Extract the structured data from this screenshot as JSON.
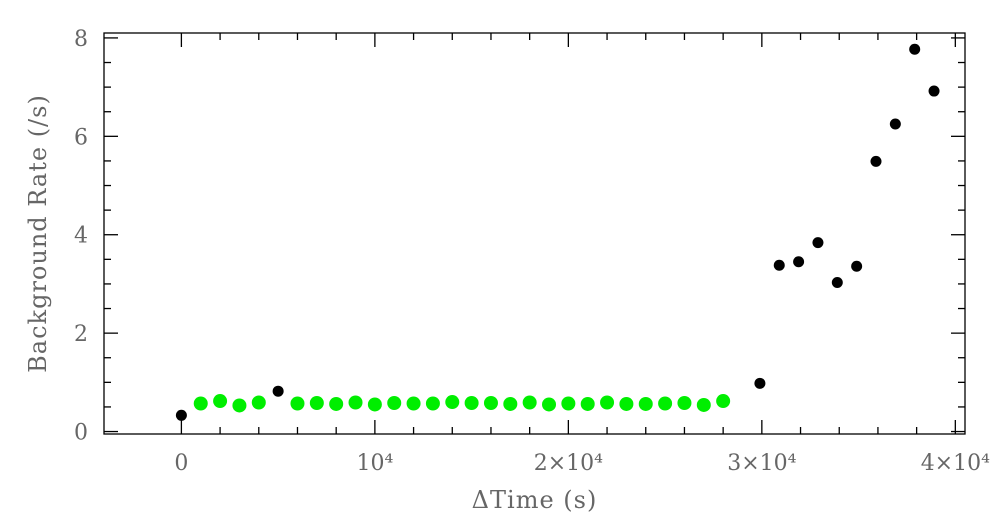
{
  "chart_data": {
    "type": "scatter",
    "xlabel": "ΔTime (s)",
    "ylabel": "Background Rate (/s)",
    "xlim": [
      -4000,
      40500
    ],
    "ylim": [
      -0.05,
      8.1
    ],
    "x_ticks": [
      {
        "value": 0,
        "label": "0"
      },
      {
        "value": 10000,
        "label": "10⁴"
      },
      {
        "value": 20000,
        "label": "2×10⁴"
      },
      {
        "value": 30000,
        "label": "3×10⁴"
      },
      {
        "value": 40000,
        "label": "4×10⁴"
      }
    ],
    "x_minor_step": 2000,
    "y_ticks": [
      {
        "value": 0,
        "label": "0"
      },
      {
        "value": 2,
        "label": "2"
      },
      {
        "value": 4,
        "label": "4"
      },
      {
        "value": 6,
        "label": "6"
      },
      {
        "value": 8,
        "label": "8"
      }
    ],
    "y_minor_step": 0.5,
    "grid": false,
    "series": [
      {
        "color": "#000000",
        "marker_size": "small",
        "x": [
          0,
          5000,
          29900,
          30900,
          31900,
          32900,
          33900,
          34900,
          35900,
          36900,
          37900,
          38900
        ],
        "y": [
          0.33,
          0.82,
          0.98,
          3.38,
          3.45,
          3.84,
          3.03,
          3.36,
          5.49,
          6.25,
          7.77,
          6.92
        ]
      },
      {
        "color": "#00ee00",
        "marker_size": "large",
        "x": [
          1000,
          2000,
          3000,
          4000,
          6000,
          7000,
          8000,
          9000,
          10000,
          11000,
          12000,
          13000,
          14000,
          15000,
          16000,
          17000,
          18000,
          19000,
          20000,
          21000,
          22000,
          23000,
          24000,
          25000,
          26000,
          27000,
          28000
        ],
        "y": [
          0.57,
          0.62,
          0.53,
          0.59,
          0.57,
          0.58,
          0.56,
          0.59,
          0.55,
          0.58,
          0.57,
          0.57,
          0.6,
          0.58,
          0.58,
          0.56,
          0.59,
          0.55,
          0.57,
          0.56,
          0.59,
          0.56,
          0.56,
          0.57,
          0.58,
          0.54,
          0.62
        ]
      }
    ]
  }
}
